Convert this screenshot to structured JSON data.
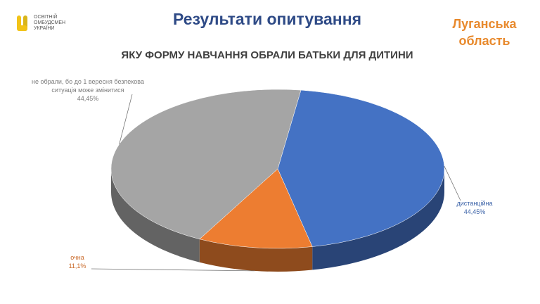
{
  "logo": {
    "lines": [
      "ОСВІТНІЙ",
      "ОМБУДСМЕН",
      "УКРАЇНИ"
    ]
  },
  "header": {
    "title": "Результати опитування",
    "region": "Луганська область"
  },
  "chart_data": {
    "type": "pie",
    "title": "ЯКУ ФОРМУ НАВЧАННЯ ОБРАЛИ БАТЬКИ ДЛЯ ДИТИНИ",
    "categories": [
      "дистанційна",
      "очна",
      "не обрали, бо до 1 вересня безпекова ситуація може змінитися"
    ],
    "values": [
      44.45,
      11.1,
      44.45
    ],
    "value_labels": [
      "44,45%",
      "11,1%",
      "44,45%"
    ],
    "colors": [
      "#4472c4",
      "#ed7d31",
      "#a5a5a5"
    ]
  }
}
